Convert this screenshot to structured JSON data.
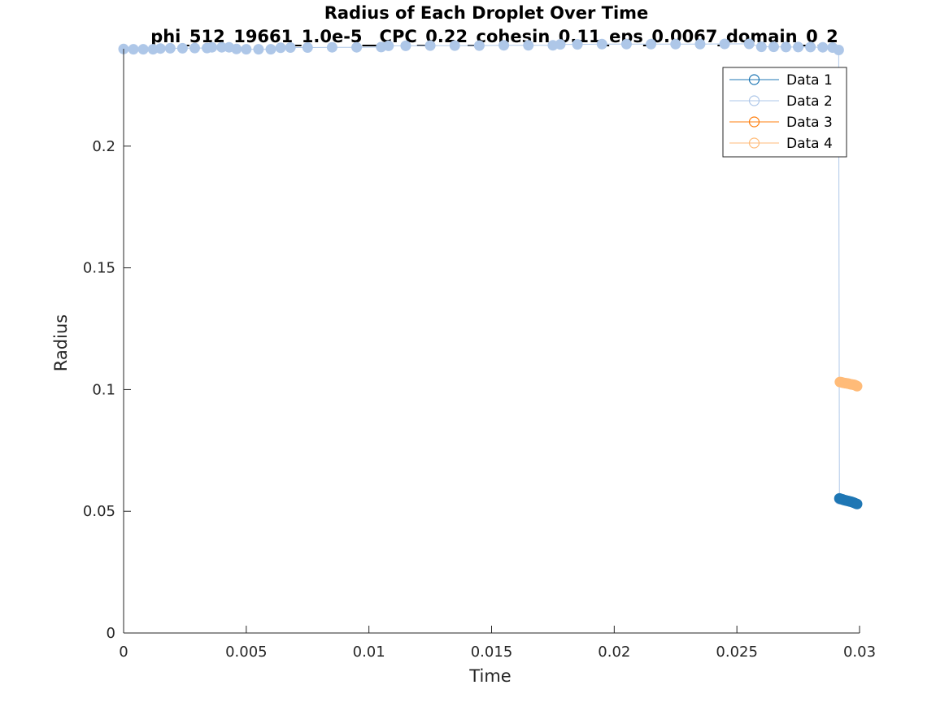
{
  "colors": {
    "data1": "#1f77b4",
    "data2": "#aec7e8",
    "data3": "#ff7f0e",
    "data4": "#ffbb78",
    "axis": "#262626",
    "background": "#ffffff"
  },
  "chart_data": {
    "type": "line",
    "title": "Radius of Each Droplet Over Time",
    "subtitle": "phi_512_19661_1.0e-5__CPC_0.22_cohesin_0.11_eps_0.0067_domain_0_2",
    "xlabel": "Time",
    "ylabel": "Radius",
    "xlim": [
      0,
      0.03
    ],
    "ylim": [
      0,
      0.24
    ],
    "xticks": [
      0,
      0.005,
      0.01,
      0.015,
      0.02,
      0.025,
      0.03
    ],
    "xtick_labels": [
      "0",
      "0.005",
      "0.01",
      "0.015",
      "0.02",
      "0.025",
      "0.03"
    ],
    "yticks": [
      0,
      0.05,
      0.1,
      0.15,
      0.2
    ],
    "ytick_labels": [
      "0",
      "0.05",
      "0.1",
      "0.15",
      "0.2"
    ],
    "grid": false,
    "legend_position": "top-right",
    "marker": "circle",
    "series": [
      {
        "name": "Data 1",
        "color": "#1f77b4",
        "x": [
          0.02918,
          0.02922,
          0.02926,
          0.0293,
          0.02934,
          0.02938,
          0.02942,
          0.02946,
          0.0295,
          0.02954,
          0.02958,
          0.02962,
          0.02966,
          0.0297,
          0.02974,
          0.02978,
          0.02982,
          0.02986,
          0.0299
        ],
        "y": [
          0.0553,
          0.0551,
          0.055,
          0.0549,
          0.0547,
          0.0546,
          0.0545,
          0.0544,
          0.0543,
          0.0542,
          0.0541,
          0.054,
          0.0539,
          0.0538,
          0.0536,
          0.0535,
          0.0533,
          0.0531,
          0.053
        ]
      },
      {
        "name": "Data 2",
        "color": "#aec7e8",
        "x": [
          0,
          0.0004,
          0.0008,
          0.0012,
          0.0015,
          0.0019,
          0.0024,
          0.0029,
          0.0034,
          0.0036,
          0.004,
          0.0043,
          0.0046,
          0.005,
          0.0055,
          0.006,
          0.0064,
          0.0068,
          0.0075,
          0.0085,
          0.0095,
          0.0105,
          0.0108,
          0.0115,
          0.0125,
          0.0135,
          0.0145,
          0.0155,
          0.0165,
          0.0175,
          0.0178,
          0.0185,
          0.0195,
          0.0205,
          0.0215,
          0.0225,
          0.0235,
          0.0245,
          0.0255,
          0.026,
          0.0265,
          0.027,
          0.0275,
          0.028,
          0.0285,
          0.0289,
          0.02915,
          0.02918
        ],
        "y": [
          0.2399,
          0.2398,
          0.2398,
          0.2398,
          0.2401,
          0.2402,
          0.2402,
          0.2403,
          0.2403,
          0.2406,
          0.2406,
          0.2406,
          0.2399,
          0.2398,
          0.2398,
          0.2398,
          0.2404,
          0.2405,
          0.2405,
          0.2406,
          0.2406,
          0.2407,
          0.2412,
          0.2412,
          0.2413,
          0.2413,
          0.2413,
          0.2414,
          0.2414,
          0.2414,
          0.2418,
          0.2418,
          0.2419,
          0.2419,
          0.2419,
          0.2419,
          0.2419,
          0.242,
          0.242,
          0.2408,
          0.2408,
          0.2407,
          0.2407,
          0.2407,
          0.2406,
          0.2405,
          0.2395,
          0.055
        ]
      },
      {
        "name": "Data 3",
        "color": "#ff7f0e",
        "x": [],
        "y": []
      },
      {
        "name": "Data 4",
        "color": "#ffbb78",
        "x": [
          0.0292,
          0.02926,
          0.02932,
          0.02938,
          0.02944,
          0.0295,
          0.02956,
          0.02962,
          0.02968,
          0.02974,
          0.0298,
          0.02986,
          0.0299
        ],
        "y": [
          0.1031,
          0.103,
          0.1028,
          0.1027,
          0.1026,
          0.1025,
          0.1024,
          0.1022,
          0.1021,
          0.102,
          0.1019,
          0.1016,
          0.1014
        ]
      }
    ]
  }
}
